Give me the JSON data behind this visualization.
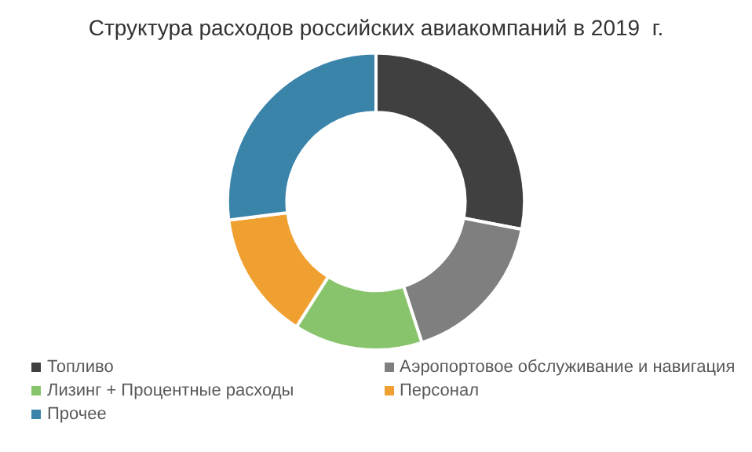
{
  "chart_data": {
    "type": "donut",
    "title": "Структура расходов российских авиакомпаний в 2019  г.",
    "categories": [
      "Топливо",
      "Аэропортовое обслуживание и навигация",
      "Лизинг + Процентные расходы",
      "Персонал",
      "Прочее"
    ],
    "values": [
      28,
      17,
      14,
      14,
      27
    ],
    "colors": [
      "#404040",
      "#7f7f7f",
      "#88c46c",
      "#f0a030",
      "#3a84aa"
    ],
    "legend": "bottom"
  }
}
